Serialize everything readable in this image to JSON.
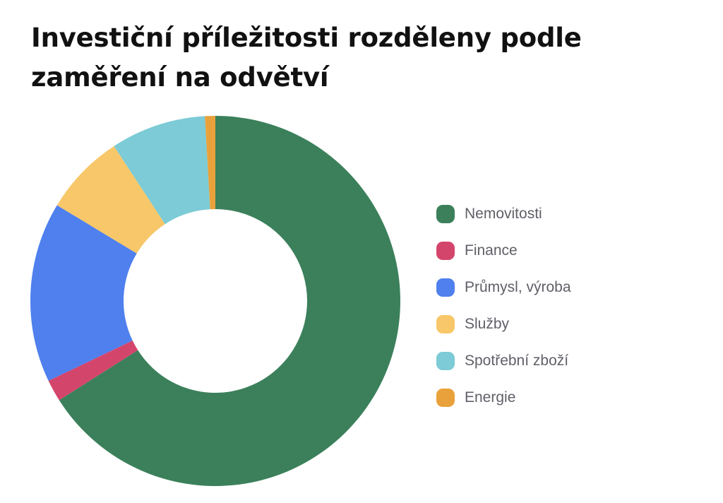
{
  "chart_data": {
    "type": "pie",
    "variant": "donut",
    "title": "Investiční příležitosti rozděleny podle zaměření na odvětví",
    "categories": [
      "Nemovitosti",
      "Finance",
      "Průmysl, výroba",
      "Služby",
      "Spotřební zboží",
      "Energie"
    ],
    "values": [
      65.8,
      1.9,
      15.7,
      7.1,
      8.3,
      0.9
    ],
    "unit": "percent (estimated share)",
    "colors": [
      "#3b805b",
      "#d4456c",
      "#4f80ee",
      "#f7c769",
      "#7ccbd6",
      "#e9a23b"
    ],
    "start_angle_deg": 0,
    "direction": "clockwise",
    "legend": "right"
  }
}
